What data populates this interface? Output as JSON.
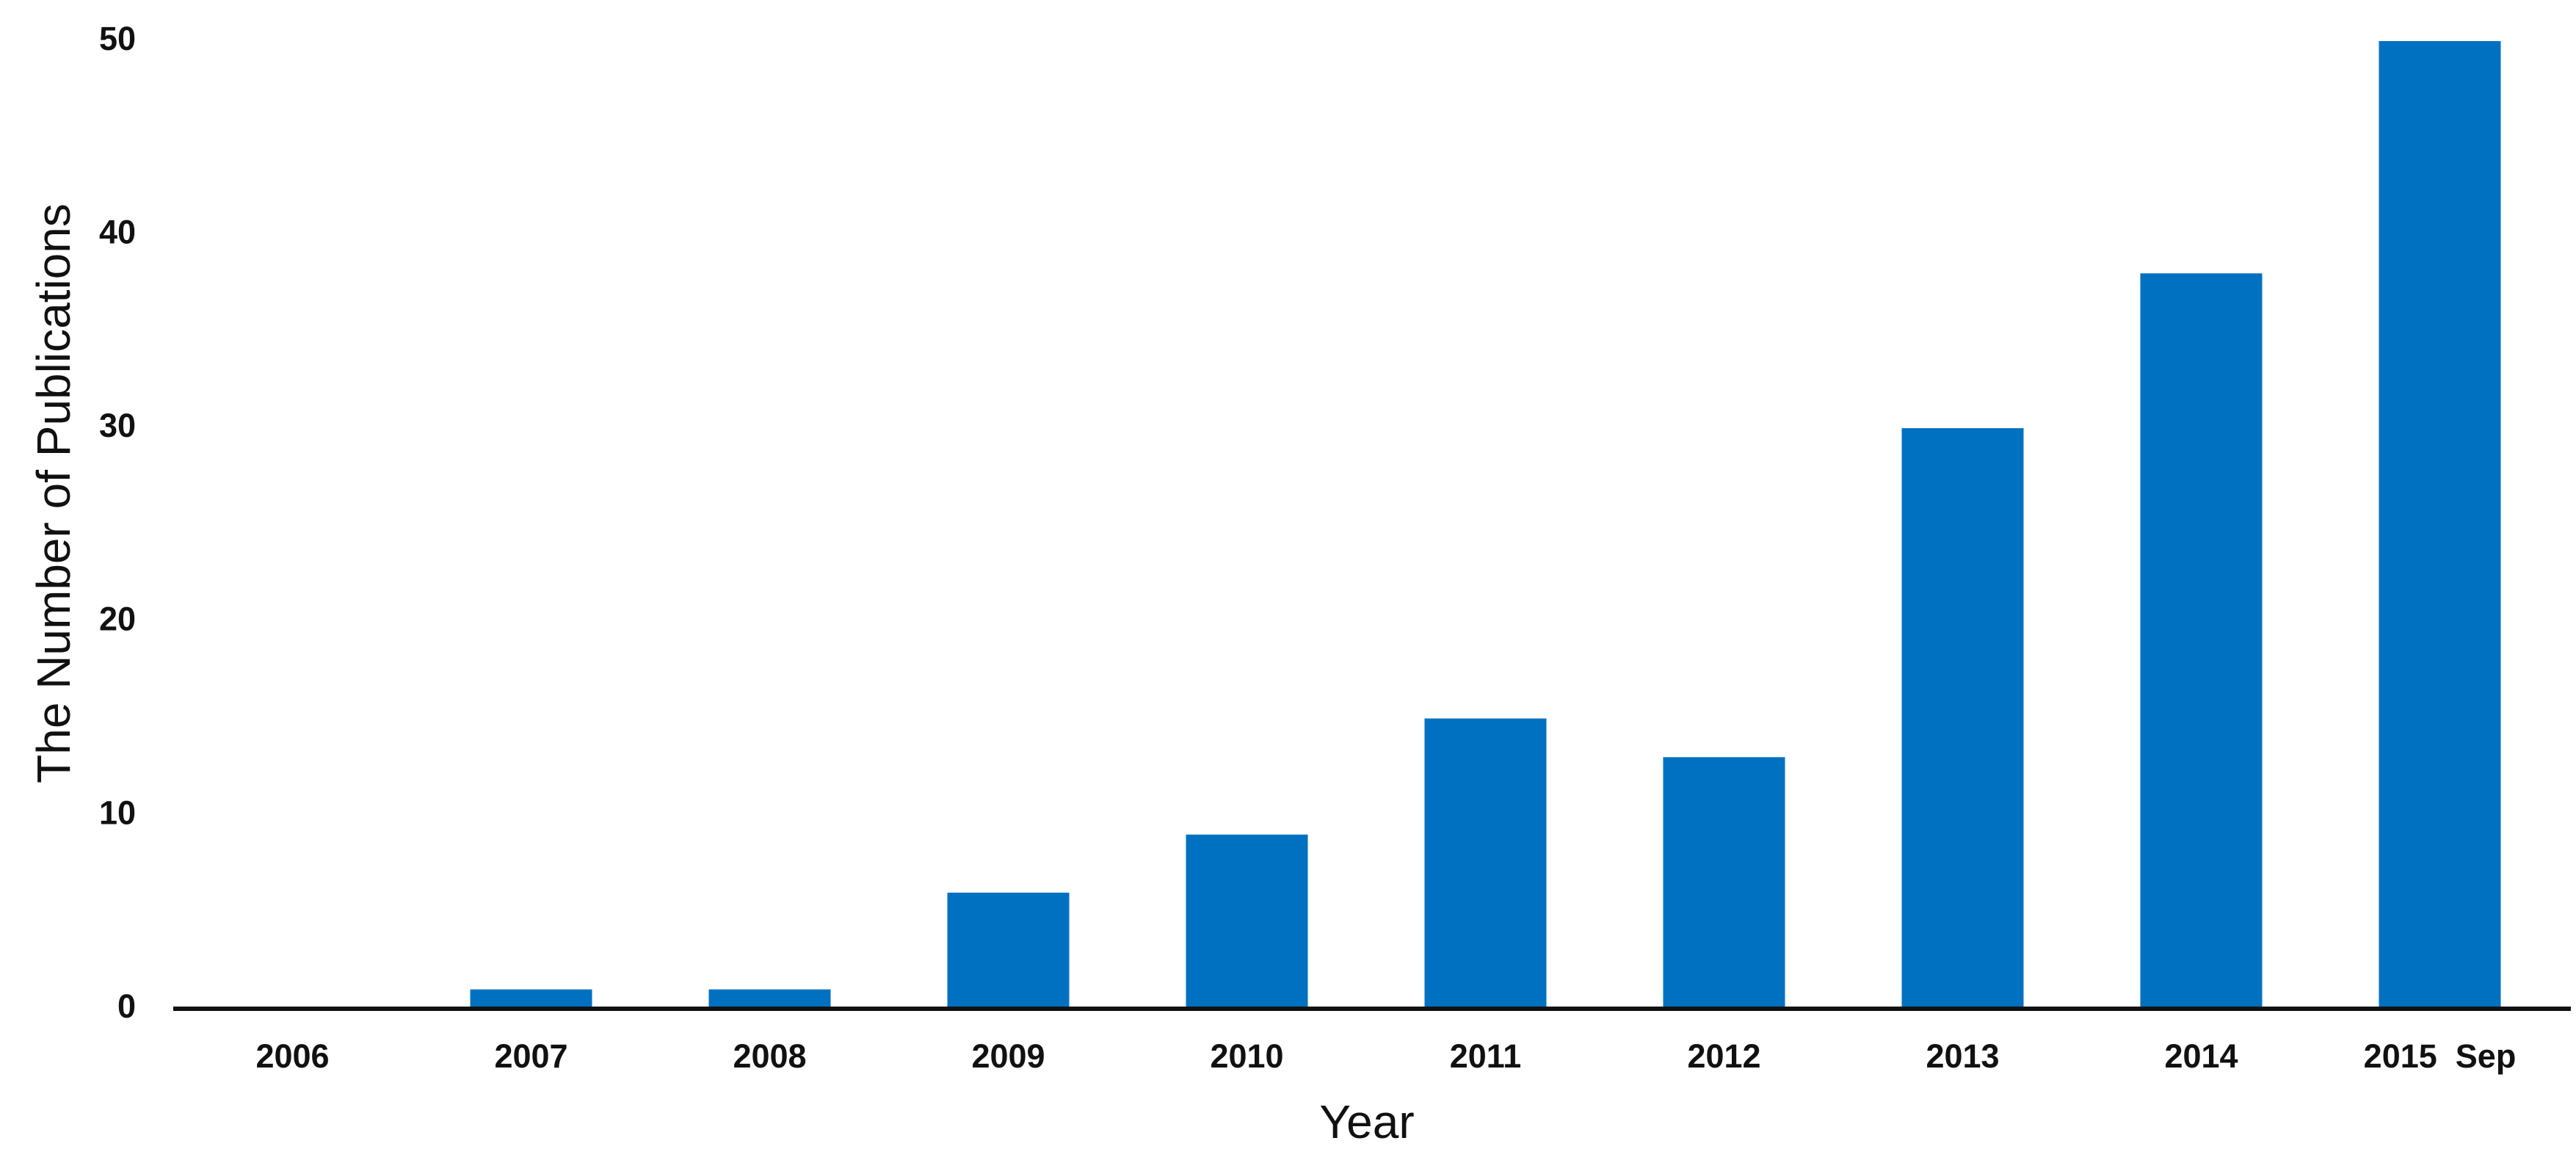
{
  "chart_data": {
    "type": "bar",
    "x_label": "Year",
    "y_label": "The Number of Publications",
    "categories": [
      "2006",
      "2007",
      "2008",
      "2009",
      "2010",
      "2011",
      "2012",
      "2013",
      "2014",
      "2015  Sep"
    ],
    "values": [
      0,
      1,
      1,
      6,
      9,
      15,
      13,
      30,
      38,
      50
    ],
    "color": "#0070c0",
    "ylim": [
      0,
      50
    ],
    "yticks": [
      0,
      10,
      20,
      30,
      40,
      50
    ],
    "grid": false
  }
}
